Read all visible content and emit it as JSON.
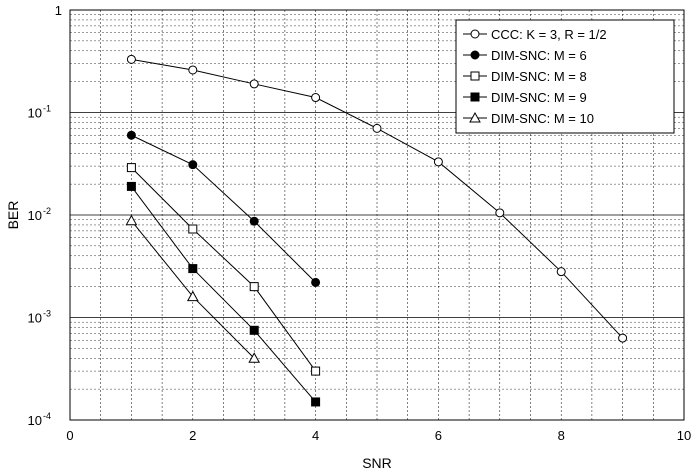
{
  "chart_data": {
    "type": "line",
    "xlabel": "SNR",
    "ylabel": "BER",
    "xlim": [
      0,
      10
    ],
    "ylim": [
      0.0001,
      1
    ],
    "yscale": "log",
    "grid": true,
    "legend_position": "top-right",
    "x_ticks": [
      0,
      2,
      4,
      6,
      8,
      10
    ],
    "y_ticks": [
      {
        "value": 1,
        "base": "1",
        "exp": ""
      },
      {
        "value": 0.1,
        "base": "10",
        "exp": "-1"
      },
      {
        "value": 0.01,
        "base": "10",
        "exp": "-2"
      },
      {
        "value": 0.001,
        "base": "10",
        "exp": "-3"
      },
      {
        "value": 0.0001,
        "base": "10",
        "exp": "-4"
      }
    ],
    "series": [
      {
        "name": "CCC: K = 3, R = 1/2",
        "marker": "circle-open",
        "x": [
          1,
          2,
          3,
          4,
          5,
          6,
          7,
          8,
          9
        ],
        "y": [
          0.33,
          0.26,
          0.19,
          0.14,
          0.07,
          0.033,
          0.0105,
          0.0028,
          0.00063
        ]
      },
      {
        "name": "DIM-SNC: M = 6",
        "marker": "circle-filled",
        "x": [
          1,
          2,
          3,
          4
        ],
        "y": [
          0.06,
          0.031,
          0.0087,
          0.0022
        ]
      },
      {
        "name": "DIM-SNC: M = 8",
        "marker": "square-open",
        "x": [
          1,
          2,
          3,
          4
        ],
        "y": [
          0.029,
          0.0073,
          0.002,
          0.0003
        ]
      },
      {
        "name": "DIM-SNC: M = 9",
        "marker": "square-filled",
        "x": [
          1,
          2,
          3,
          4
        ],
        "y": [
          0.019,
          0.003,
          0.00075,
          0.00015
        ]
      },
      {
        "name": "DIM-SNC: M = 10",
        "marker": "triangle-open",
        "x": [
          1,
          2,
          3
        ],
        "y": [
          0.0088,
          0.0016,
          0.0004
        ]
      }
    ]
  }
}
